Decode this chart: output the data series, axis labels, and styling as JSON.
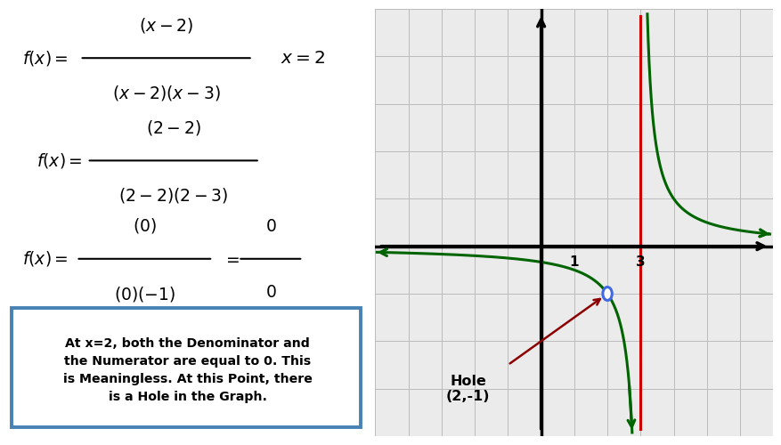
{
  "bg_color": "#ffffff",
  "right_panel_bg": "#ebebeb",
  "grid_color": "#cccccc",
  "curve_color": "#006400",
  "asymptote_color": "#cc0000",
  "hole_edge_color": "#4169e1",
  "arrow_color": "#8b0000",
  "box_border_color": "#4682b4",
  "xlim": [
    -5,
    7
  ],
  "ylim": [
    -4,
    5
  ],
  "hole_x": 2,
  "hole_y": -1,
  "asymptote_x": 3,
  "box_text_line1": "At x=2, both the Denominator and",
  "box_text_line2": "the Numerator are equal to 0. This",
  "box_text_line3": "is Meaningless. At this Point, there",
  "box_text_line4": "is a Hole in the Graph."
}
